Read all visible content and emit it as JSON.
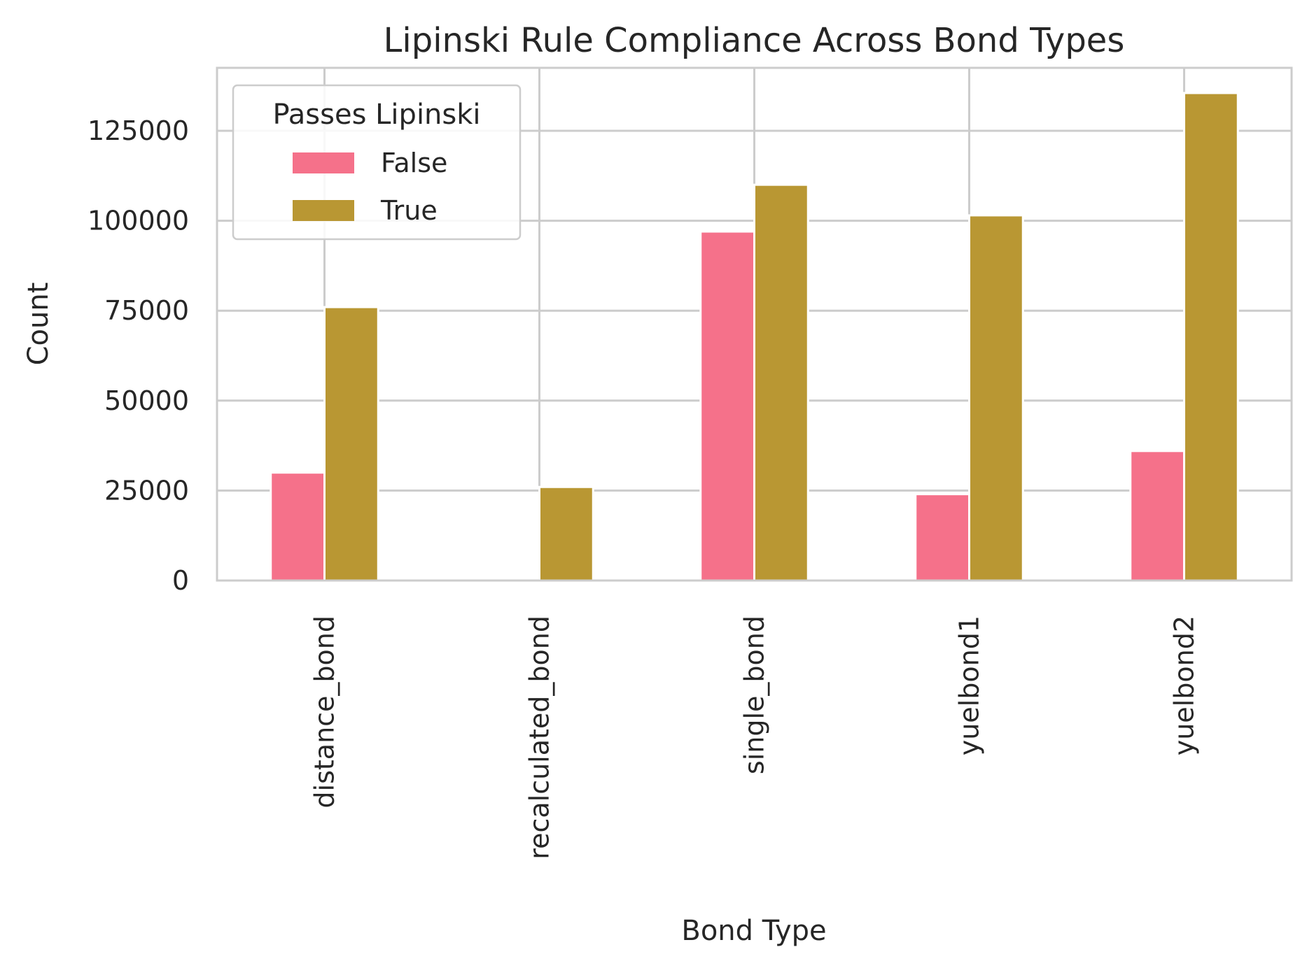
{
  "chart_data": {
    "type": "bar",
    "title": "Lipinski Rule Compliance Across Bond Types",
    "xlabel": "Bond Type",
    "ylabel": "Count",
    "categories": [
      "distance_bond",
      "recalculated_bond",
      "single_bond",
      "yuelbond1",
      "yuelbond2"
    ],
    "series": [
      {
        "name": "False",
        "color": "#f5718a",
        "values": [
          30000,
          0,
          97000,
          24000,
          36000
        ]
      },
      {
        "name": "True",
        "color": "#b99733",
        "values": [
          76000,
          26000,
          110000,
          101500,
          135500
        ]
      }
    ],
    "ylim": [
      0,
      142500
    ],
    "yticks": [
      0,
      25000,
      50000,
      75000,
      100000,
      125000
    ],
    "legend": {
      "title": "Passes Lipinski",
      "placement": "top-left"
    },
    "grid": true,
    "colors": {
      "grid": "#cccccc",
      "axis": "#cccccc",
      "text": "#262626"
    }
  }
}
